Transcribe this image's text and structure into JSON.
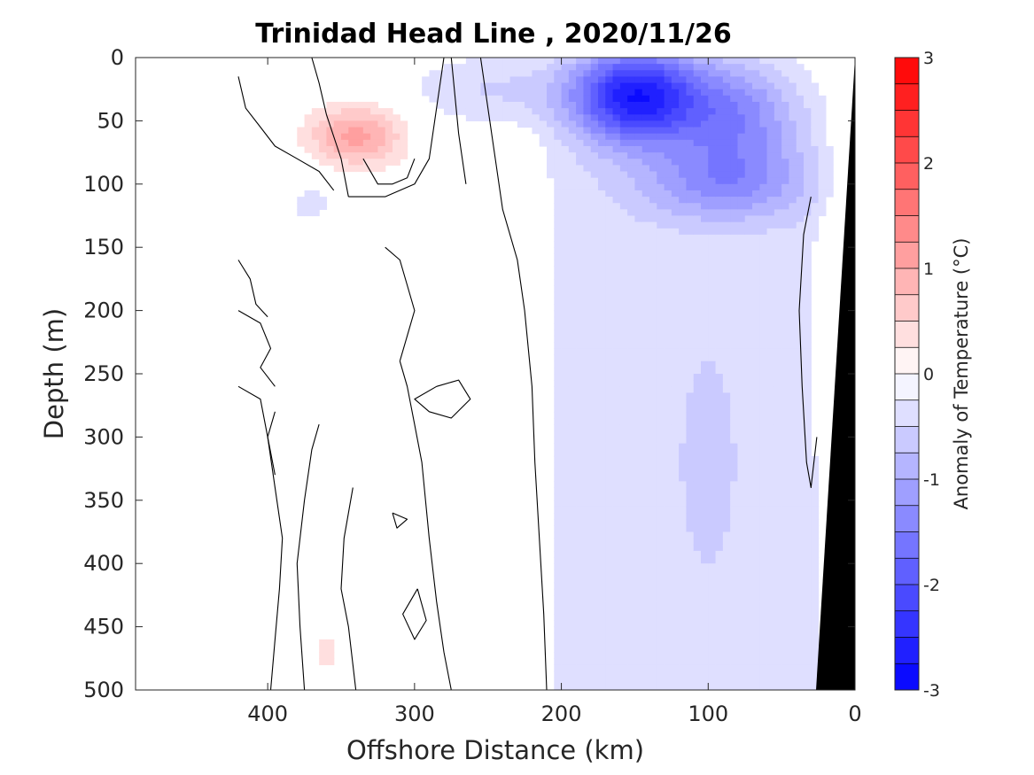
{
  "chart_data": {
    "type": "heatmap",
    "title": "Trinidad Head Line , 2020/11/26",
    "xlabel": "Offshore Distance (km)",
    "ylabel": "Depth (m)",
    "xlim": [
      490,
      0
    ],
    "ylim": [
      500,
      0
    ],
    "x_reversed": true,
    "y_reversed": true,
    "xticks": [
      "400",
      "300",
      "200",
      "100",
      "0"
    ],
    "xtick_values": [
      400,
      300,
      200,
      100,
      0
    ],
    "yticks": [
      "0",
      "50",
      "100",
      "150",
      "200",
      "250",
      "300",
      "350",
      "400",
      "450",
      "500"
    ],
    "ytick_values": [
      0,
      50,
      100,
      150,
      200,
      250,
      300,
      350,
      400,
      450,
      500
    ],
    "colorbar": {
      "label": "Anomaly of Temperature (°C)",
      "range": [
        -3,
        3
      ],
      "step": 0.25,
      "ticks": [
        "3",
        "2",
        "1",
        "0",
        "-1",
        "-2",
        "-3"
      ],
      "tick_values": [
        3,
        2,
        1,
        0,
        -1,
        -2,
        -3
      ],
      "colormap": "blue-white-red",
      "color_cold": "#0000ff",
      "color_warm": "#ff0000"
    },
    "contour_levels": [
      0
    ],
    "data_extent_x": [
      420,
      0
    ],
    "bottom_mask_color": "#000000",
    "features": [
      {
        "name": "near-surface cold core",
        "x_center": 150,
        "depth_center": 30,
        "anomaly": -2.6
      },
      {
        "name": "subsurface warm core",
        "x_center": 340,
        "depth_center": 62,
        "anomaly": 1.1
      },
      {
        "name": "broad weak cool region",
        "x_range": [
          210,
          20
        ],
        "depth_range": [
          100,
          500
        ],
        "anomaly": -0.35
      },
      {
        "name": "slope warm band",
        "x_center": 20,
        "depth_range": [
          140,
          300
        ],
        "anomaly": 0.3
      },
      {
        "name": "deep warm patch",
        "x_center": 360,
        "depth_range": [
          420,
          500
        ],
        "anomaly": 0.3
      }
    ]
  }
}
